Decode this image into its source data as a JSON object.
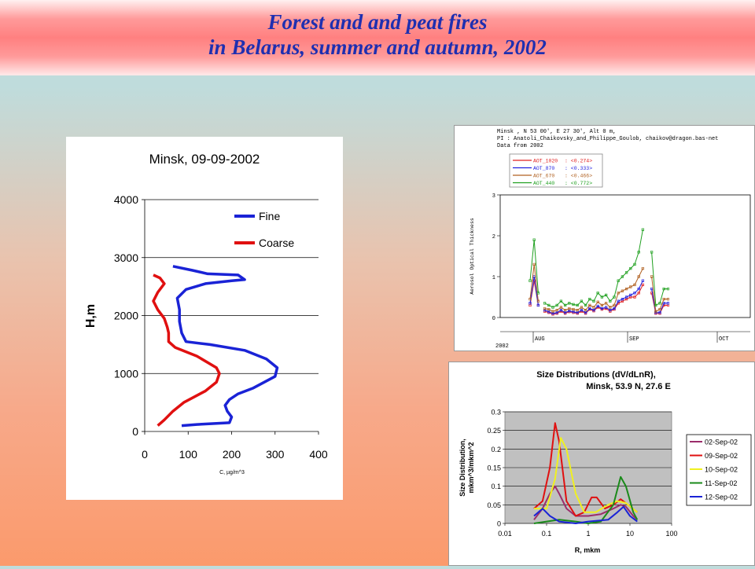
{
  "slide": {
    "title_line1": "Forest and and peat fires",
    "title_line2": "in Belarus, summer and autumn, 2002"
  },
  "colors": {
    "fine": "#1a23d6",
    "coarse": "#e01010",
    "title": "#1f2fb0"
  },
  "chart_data": [
    {
      "type": "line",
      "title": "Minsk, 09-09-2002",
      "xlabel": "C, µg/m^3",
      "ylabel": "H,m",
      "xlim": [
        0,
        400
      ],
      "ylim": [
        0,
        4000
      ],
      "x_ticks": [
        "0",
        "100",
        "200",
        "300",
        "400"
      ],
      "y_ticks": [
        "0",
        "1000",
        "2000",
        "3000",
        "4000"
      ],
      "grid": "horizontal",
      "legend": "top-right",
      "series": [
        {
          "name": "Fine",
          "color": "#1a23d6",
          "points": [
            [
              85,
              100
            ],
            [
              120,
              120
            ],
            [
              195,
              150
            ],
            [
              200,
              250
            ],
            [
              190,
              350
            ],
            [
              185,
              450
            ],
            [
              195,
              550
            ],
            [
              215,
              650
            ],
            [
              250,
              750
            ],
            [
              300,
              950
            ],
            [
              305,
              1100
            ],
            [
              280,
              1250
            ],
            [
              230,
              1400
            ],
            [
              150,
              1500
            ],
            [
              95,
              1550
            ],
            [
              85,
              1700
            ],
            [
              80,
              1900
            ],
            [
              80,
              2100
            ],
            [
              75,
              2300
            ],
            [
              95,
              2450
            ],
            [
              140,
              2550
            ],
            [
              200,
              2600
            ],
            [
              230,
              2620
            ],
            [
              215,
              2700
            ],
            [
              145,
              2720
            ],
            [
              110,
              2780
            ],
            [
              65,
              2850
            ]
          ]
        },
        {
          "name": "Coarse",
          "color": "#e01010",
          "points": [
            [
              30,
              100
            ],
            [
              45,
              200
            ],
            [
              65,
              350
            ],
            [
              90,
              500
            ],
            [
              140,
              700
            ],
            [
              165,
              850
            ],
            [
              172,
              1000
            ],
            [
              165,
              1100
            ],
            [
              120,
              1300
            ],
            [
              70,
              1450
            ],
            [
              55,
              1550
            ],
            [
              55,
              1700
            ],
            [
              52,
              1800
            ],
            [
              45,
              1950
            ],
            [
              30,
              2100
            ],
            [
              20,
              2250
            ],
            [
              30,
              2400
            ],
            [
              45,
              2550
            ],
            [
              35,
              2650
            ],
            [
              20,
              2700
            ]
          ]
        }
      ]
    },
    {
      "type": "line",
      "header_lines": [
        "Minsk , N 53 00', E 27 30', Alt 0 m,",
        "PI : Anatoli_Chaikovsky_and_Philippe_Goulob, chaikov@dragon.bas-net",
        "Data from  2002"
      ],
      "ylabel": "Aerosol Optical Thickness",
      "ylim": [
        0,
        3
      ],
      "y_ticks": [
        "0",
        "1",
        "2",
        "3"
      ],
      "x_ticks": [
        "AUG",
        "SEP",
        "OCT"
      ],
      "year_label": "2002",
      "legend": "top-left",
      "series": [
        {
          "name": "AOT_1020",
          "mean": "<0.274>",
          "color": "#e02020",
          "values": [
            0.3,
            0.9,
            0.3,
            0.15,
            0.12,
            0.08,
            0.1,
            0.15,
            0.1,
            0.14,
            0.12,
            0.1,
            0.15,
            0.1,
            0.2,
            0.16,
            0.25,
            0.2,
            0.22,
            0.15,
            0.2,
            0.35,
            0.4,
            0.45,
            0.5,
            0.5,
            0.6,
            0.8,
            0.6,
            0.1,
            0.1,
            0.3,
            0.3
          ]
        },
        {
          "name": "AOT_870",
          "mean": "<0.333>",
          "color": "#2020e0",
          "values": [
            0.35,
            1.0,
            0.3,
            0.18,
            0.14,
            0.1,
            0.12,
            0.18,
            0.12,
            0.16,
            0.14,
            0.12,
            0.18,
            0.12,
            0.22,
            0.18,
            0.28,
            0.22,
            0.25,
            0.18,
            0.22,
            0.4,
            0.45,
            0.5,
            0.55,
            0.6,
            0.7,
            0.9,
            0.7,
            0.12,
            0.12,
            0.35,
            0.35
          ]
        },
        {
          "name": "AOT_670",
          "mean": "<0.466>",
          "color": "#b06020",
          "values": [
            0.45,
            1.3,
            0.4,
            0.22,
            0.2,
            0.15,
            0.18,
            0.25,
            0.18,
            0.22,
            0.2,
            0.18,
            0.25,
            0.18,
            0.3,
            0.25,
            0.38,
            0.3,
            0.35,
            0.25,
            0.3,
            0.6,
            0.65,
            0.7,
            0.75,
            0.8,
            1.0,
            1.2,
            1.0,
            0.15,
            0.2,
            0.45,
            0.45
          ]
        },
        {
          "name": "AOT_440",
          "mean": "<0.772>",
          "color": "#20a020",
          "values": [
            0.9,
            1.9,
            0.6,
            0.35,
            0.3,
            0.25,
            0.3,
            0.4,
            0.3,
            0.35,
            0.32,
            0.3,
            0.4,
            0.3,
            0.45,
            0.4,
            0.6,
            0.5,
            0.55,
            0.4,
            0.5,
            0.9,
            1.0,
            1.1,
            1.2,
            1.3,
            1.6,
            2.15,
            1.6,
            0.3,
            0.35,
            0.7,
            0.7
          ]
        }
      ]
    },
    {
      "type": "line",
      "title_line1": "Size Distributions (dV/dLnR),",
      "title_line2": "Minsk, 53.9 N, 27.6 E",
      "xlabel": "R, mkm",
      "ylabel_line1": "Size Distribution,",
      "ylabel_line2": "mkm^3/mkm^2",
      "x_scale": "log",
      "xlim": [
        0.01,
        100
      ],
      "ylim": [
        0,
        0.3
      ],
      "x_ticks": [
        "0.01",
        "0.1",
        "1",
        "10",
        "100"
      ],
      "y_ticks": [
        "0",
        "0.05",
        "0.1",
        "0.15",
        "0.2",
        "0.25",
        "0.3"
      ],
      "grid": "horizontal",
      "legend": "right",
      "series": [
        {
          "name": "02-Sep-02",
          "color": "#9b2d6b",
          "points": [
            [
              0.05,
              0.01
            ],
            [
              0.08,
              0.04
            ],
            [
              0.12,
              0.08
            ],
            [
              0.16,
              0.1
            ],
            [
              0.2,
              0.08
            ],
            [
              0.3,
              0.04
            ],
            [
              0.5,
              0.02
            ],
            [
              1,
              0.02
            ],
            [
              2,
              0.025
            ],
            [
              4,
              0.04
            ],
            [
              6,
              0.05
            ],
            [
              8,
              0.045
            ],
            [
              12,
              0.02
            ],
            [
              15,
              0.01
            ]
          ]
        },
        {
          "name": "09-Sep-02",
          "color": "#e01010",
          "points": [
            [
              0.05,
              0.04
            ],
            [
              0.08,
              0.06
            ],
            [
              0.12,
              0.15
            ],
            [
              0.16,
              0.27
            ],
            [
              0.2,
              0.22
            ],
            [
              0.3,
              0.06
            ],
            [
              0.5,
              0.02
            ],
            [
              0.8,
              0.03
            ],
            [
              1.2,
              0.07
            ],
            [
              1.6,
              0.07
            ],
            [
              2.5,
              0.04
            ],
            [
              4,
              0.05
            ],
            [
              6,
              0.065
            ],
            [
              9,
              0.05
            ],
            [
              15,
              0.03
            ]
          ]
        },
        {
          "name": "10-Sep-02",
          "color": "#f0f020",
          "points": [
            [
              0.05,
              0.04
            ],
            [
              0.1,
              0.04
            ],
            [
              0.16,
              0.12
            ],
            [
              0.22,
              0.23
            ],
            [
              0.3,
              0.2
            ],
            [
              0.5,
              0.08
            ],
            [
              0.8,
              0.03
            ],
            [
              1.5,
              0.03
            ],
            [
              3,
              0.05
            ],
            [
              5,
              0.06
            ],
            [
              8,
              0.055
            ],
            [
              15,
              0.03
            ]
          ]
        },
        {
          "name": "11-Sep-02",
          "color": "#1a8a1a",
          "points": [
            [
              0.05,
              0.0
            ],
            [
              0.1,
              0.005
            ],
            [
              0.2,
              0.01
            ],
            [
              0.5,
              0.005
            ],
            [
              1,
              0.0
            ],
            [
              2,
              0.005
            ],
            [
              4,
              0.05
            ],
            [
              6,
              0.125
            ],
            [
              8,
              0.1
            ],
            [
              12,
              0.03
            ],
            [
              15,
              0.01
            ]
          ]
        },
        {
          "name": "12-Sep-02",
          "color": "#1a23d6",
          "points": [
            [
              0.05,
              0.02
            ],
            [
              0.08,
              0.04
            ],
            [
              0.12,
              0.02
            ],
            [
              0.2,
              0.005
            ],
            [
              0.5,
              0.0
            ],
            [
              1,
              0.005
            ],
            [
              3,
              0.01
            ],
            [
              5,
              0.03
            ],
            [
              7,
              0.045
            ],
            [
              10,
              0.02
            ],
            [
              15,
              0.005
            ]
          ]
        }
      ]
    }
  ]
}
